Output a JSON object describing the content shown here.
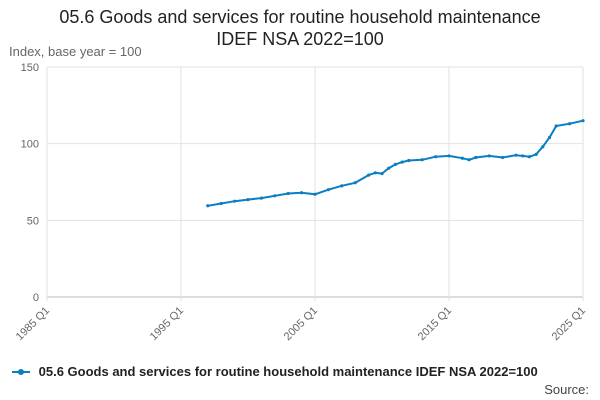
{
  "chart_data": {
    "type": "line",
    "title": "05.6 Goods and services for routine household maintenance",
    "subtitle": "IDEF NSA 2022=100",
    "ylabel": "Index, base year = 100",
    "ylim": [
      0,
      150
    ],
    "yticks": [
      0,
      50,
      100,
      150
    ],
    "xlim": [
      1985,
      2025
    ],
    "xticks": [
      {
        "value": 1985,
        "label": "1985 Q1"
      },
      {
        "value": 1995,
        "label": "1995 Q1"
      },
      {
        "value": 2005,
        "label": "2005 Q1"
      },
      {
        "value": 2015,
        "label": "2015 Q1"
      },
      {
        "value": 2025,
        "label": "2025 Q1"
      }
    ],
    "grid": true,
    "legend_position": "bottom-left",
    "series": [
      {
        "name": "05.6 Goods and services for routine household maintenance IDEF NSA 2022=100",
        "color": "#0a7ec2",
        "x": [
          1997.0,
          1998.0,
          1999.0,
          2000.0,
          2001.0,
          2002.0,
          2003.0,
          2004.0,
          2005.0,
          2006.0,
          2007.0,
          2008.0,
          2009.0,
          2009.5,
          2010.0,
          2010.5,
          2011.0,
          2011.5,
          2012.0,
          2013.0,
          2014.0,
          2015.0,
          2016.0,
          2016.5,
          2017.0,
          2018.0,
          2019.0,
          2020.0,
          2020.5,
          2021.0,
          2021.5,
          2022.0,
          2022.5,
          2023.0,
          2024.0,
          2025.0
        ],
        "y": [
          59.5,
          61,
          62.5,
          63.5,
          64.5,
          66,
          67.5,
          68,
          67,
          70,
          72.5,
          74.5,
          79.5,
          81,
          80.5,
          84,
          86.5,
          88,
          89,
          89.5,
          91.5,
          92,
          90.5,
          89.5,
          91,
          92,
          91,
          92.5,
          92,
          91.5,
          93,
          98,
          104,
          111.5,
          113,
          115
        ]
      }
    ]
  },
  "legend": {
    "label": "05.6 Goods and services for routine household maintenance IDEF NSA 2022=100"
  },
  "source_label": "Source:"
}
